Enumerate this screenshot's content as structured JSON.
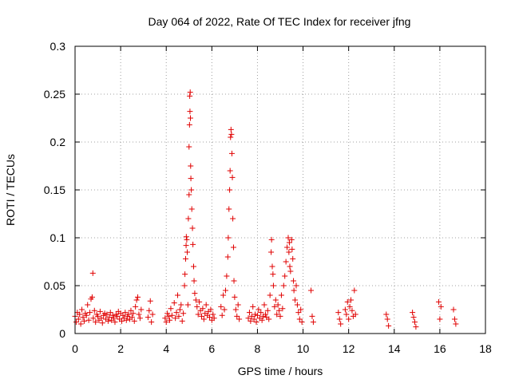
{
  "chart_data": {
    "type": "scatter",
    "title": "Day 064 of 2022, Rate Of TEC Index for receiver jfng",
    "xlabel": "GPS time / hours",
    "ylabel": "ROTI / TECUs",
    "xlim": [
      0,
      18
    ],
    "ylim": [
      0,
      0.3
    ],
    "x_ticks": [
      0,
      2,
      4,
      6,
      8,
      10,
      12,
      14,
      16,
      18
    ],
    "y_ticks": [
      0,
      0.05,
      0.1,
      0.15,
      0.2,
      0.25,
      0.3
    ],
    "x_tick_labels": [
      "0",
      "2",
      "4",
      "6",
      "8",
      "10",
      "12",
      "14",
      "16",
      "18"
    ],
    "y_tick_labels": [
      "0",
      "0.05",
      "0.1",
      "0.15",
      "0.2",
      "0.25",
      "0.3"
    ],
    "grid": true,
    "marker": "+",
    "marker_color": "#e00000",
    "series": [
      {
        "name": "ROTI",
        "points": [
          [
            0.0,
            0.018
          ],
          [
            0.05,
            0.012
          ],
          [
            0.1,
            0.022
          ],
          [
            0.15,
            0.015
          ],
          [
            0.2,
            0.02
          ],
          [
            0.25,
            0.01
          ],
          [
            0.3,
            0.025
          ],
          [
            0.35,
            0.017
          ],
          [
            0.4,
            0.013
          ],
          [
            0.45,
            0.021
          ],
          [
            0.5,
            0.019
          ],
          [
            0.55,
            0.03
          ],
          [
            0.6,
            0.014
          ],
          [
            0.65,
            0.022
          ],
          [
            0.7,
            0.036
          ],
          [
            0.75,
            0.038
          ],
          [
            0.78,
            0.063
          ],
          [
            0.8,
            0.016
          ],
          [
            0.85,
            0.024
          ],
          [
            0.9,
            0.012
          ],
          [
            0.95,
            0.02
          ],
          [
            1.0,
            0.018
          ],
          [
            1.05,
            0.014
          ],
          [
            1.1,
            0.023
          ],
          [
            1.15,
            0.016
          ],
          [
            1.2,
            0.011
          ],
          [
            1.25,
            0.019
          ],
          [
            1.3,
            0.021
          ],
          [
            1.35,
            0.015
          ],
          [
            1.4,
            0.02
          ],
          [
            1.45,
            0.013
          ],
          [
            1.5,
            0.017
          ],
          [
            1.55,
            0.022
          ],
          [
            1.6,
            0.014
          ],
          [
            1.65,
            0.019
          ],
          [
            1.7,
            0.016
          ],
          [
            1.75,
            0.012
          ],
          [
            1.8,
            0.02
          ],
          [
            1.85,
            0.018
          ],
          [
            1.9,
            0.023
          ],
          [
            1.95,
            0.015
          ],
          [
            2.0,
            0.021
          ],
          [
            2.05,
            0.013
          ],
          [
            2.1,
            0.019
          ],
          [
            2.15,
            0.016
          ],
          [
            2.2,
            0.022
          ],
          [
            2.25,
            0.014
          ],
          [
            2.3,
            0.018
          ],
          [
            2.35,
            0.02
          ],
          [
            2.4,
            0.015
          ],
          [
            2.45,
            0.024
          ],
          [
            2.5,
            0.017
          ],
          [
            2.55,
            0.021
          ],
          [
            2.6,
            0.013
          ],
          [
            2.65,
            0.028
          ],
          [
            2.7,
            0.035
          ],
          [
            2.75,
            0.038
          ],
          [
            2.8,
            0.02
          ],
          [
            2.85,
            0.016
          ],
          [
            2.9,
            0.025
          ],
          [
            3.2,
            0.017
          ],
          [
            3.25,
            0.024
          ],
          [
            3.3,
            0.034
          ],
          [
            3.35,
            0.012
          ],
          [
            3.4,
            0.02
          ],
          [
            3.95,
            0.016
          ],
          [
            4.0,
            0.012
          ],
          [
            4.05,
            0.021
          ],
          [
            4.1,
            0.018
          ],
          [
            4.15,
            0.014
          ],
          [
            4.2,
            0.026
          ],
          [
            4.25,
            0.019
          ],
          [
            4.35,
            0.032
          ],
          [
            4.4,
            0.016
          ],
          [
            4.45,
            0.022
          ],
          [
            4.5,
            0.04
          ],
          [
            4.55,
            0.018
          ],
          [
            4.6,
            0.025
          ],
          [
            4.65,
            0.03
          ],
          [
            4.7,
            0.013
          ],
          [
            4.75,
            0.021
          ],
          [
            4.8,
            0.05
          ],
          [
            4.82,
            0.062
          ],
          [
            4.85,
            0.078
          ],
          [
            4.87,
            0.092
          ],
          [
            4.88,
            0.101
          ],
          [
            4.9,
            0.098
          ],
          [
            4.92,
            0.085
          ],
          [
            4.95,
            0.03
          ],
          [
            4.97,
            0.12
          ],
          [
            5.0,
            0.145
          ],
          [
            5.0,
            0.195
          ],
          [
            5.02,
            0.218
          ],
          [
            5.03,
            0.248
          ],
          [
            5.04,
            0.232
          ],
          [
            5.05,
            0.252
          ],
          [
            5.06,
            0.225
          ],
          [
            5.07,
            0.175
          ],
          [
            5.08,
            0.162
          ],
          [
            5.1,
            0.15
          ],
          [
            5.12,
            0.13
          ],
          [
            5.15,
            0.11
          ],
          [
            5.17,
            0.093
          ],
          [
            5.2,
            0.07
          ],
          [
            5.22,
            0.055
          ],
          [
            5.25,
            0.042
          ],
          [
            5.3,
            0.035
          ],
          [
            5.35,
            0.028
          ],
          [
            5.4,
            0.02
          ],
          [
            5.45,
            0.033
          ],
          [
            5.5,
            0.024
          ],
          [
            5.55,
            0.018
          ],
          [
            5.6,
            0.026
          ],
          [
            5.65,
            0.015
          ],
          [
            5.7,
            0.021
          ],
          [
            5.75,
            0.03
          ],
          [
            5.8,
            0.019
          ],
          [
            5.85,
            0.023
          ],
          [
            5.9,
            0.017
          ],
          [
            5.95,
            0.025
          ],
          [
            6.0,
            0.014
          ],
          [
            6.05,
            0.02
          ],
          [
            6.1,
            0.016
          ],
          [
            6.4,
            0.028
          ],
          [
            6.45,
            0.019
          ],
          [
            6.5,
            0.04
          ],
          [
            6.55,
            0.025
          ],
          [
            6.6,
            0.045
          ],
          [
            6.65,
            0.06
          ],
          [
            6.7,
            0.08
          ],
          [
            6.72,
            0.1
          ],
          [
            6.75,
            0.13
          ],
          [
            6.78,
            0.15
          ],
          [
            6.8,
            0.17
          ],
          [
            6.82,
            0.205
          ],
          [
            6.84,
            0.213
          ],
          [
            6.86,
            0.208
          ],
          [
            6.88,
            0.188
          ],
          [
            6.9,
            0.163
          ],
          [
            6.92,
            0.12
          ],
          [
            6.95,
            0.09
          ],
          [
            6.97,
            0.055
          ],
          [
            7.0,
            0.038
          ],
          [
            7.05,
            0.025
          ],
          [
            7.1,
            0.018
          ],
          [
            7.15,
            0.03
          ],
          [
            7.2,
            0.015
          ],
          [
            7.6,
            0.016
          ],
          [
            7.65,
            0.022
          ],
          [
            7.7,
            0.013
          ],
          [
            7.75,
            0.018
          ],
          [
            7.8,
            0.028
          ],
          [
            7.85,
            0.015
          ],
          [
            7.9,
            0.02
          ],
          [
            7.95,
            0.012
          ],
          [
            8.0,
            0.019
          ],
          [
            8.05,
            0.025
          ],
          [
            8.1,
            0.016
          ],
          [
            8.15,
            0.022
          ],
          [
            8.2,
            0.014
          ],
          [
            8.25,
            0.018
          ],
          [
            8.3,
            0.03
          ],
          [
            8.35,
            0.02
          ],
          [
            8.4,
            0.017
          ],
          [
            8.45,
            0.024
          ],
          [
            8.5,
            0.015
          ],
          [
            8.55,
            0.04
          ],
          [
            8.6,
            0.085
          ],
          [
            8.62,
            0.098
          ],
          [
            8.65,
            0.07
          ],
          [
            8.68,
            0.062
          ],
          [
            8.7,
            0.05
          ],
          [
            8.75,
            0.028
          ],
          [
            8.8,
            0.035
          ],
          [
            8.85,
            0.02
          ],
          [
            8.9,
            0.03
          ],
          [
            8.95,
            0.024
          ],
          [
            9.0,
            0.018
          ],
          [
            9.05,
            0.04
          ],
          [
            9.1,
            0.026
          ],
          [
            9.15,
            0.05
          ],
          [
            9.2,
            0.06
          ],
          [
            9.25,
            0.075
          ],
          [
            9.3,
            0.09
          ],
          [
            9.35,
            0.1
          ],
          [
            9.38,
            0.085
          ],
          [
            9.4,
            0.095
          ],
          [
            9.42,
            0.07
          ],
          [
            9.45,
            0.065
          ],
          [
            9.5,
            0.098
          ],
          [
            9.52,
            0.088
          ],
          [
            9.55,
            0.078
          ],
          [
            9.58,
            0.055
          ],
          [
            9.6,
            0.045
          ],
          [
            9.65,
            0.035
          ],
          [
            9.7,
            0.05
          ],
          [
            9.75,
            0.03
          ],
          [
            9.8,
            0.022
          ],
          [
            9.85,
            0.015
          ],
          [
            9.9,
            0.025
          ],
          [
            9.95,
            0.012
          ],
          [
            10.35,
            0.045
          ],
          [
            10.4,
            0.018
          ],
          [
            10.45,
            0.012
          ],
          [
            11.55,
            0.022
          ],
          [
            11.6,
            0.015
          ],
          [
            11.65,
            0.01
          ],
          [
            11.85,
            0.025
          ],
          [
            11.9,
            0.02
          ],
          [
            11.95,
            0.033
          ],
          [
            12.0,
            0.015
          ],
          [
            12.05,
            0.028
          ],
          [
            12.1,
            0.035
          ],
          [
            12.15,
            0.024
          ],
          [
            12.2,
            0.018
          ],
          [
            12.25,
            0.045
          ],
          [
            12.3,
            0.02
          ],
          [
            13.65,
            0.02
          ],
          [
            13.7,
            0.015
          ],
          [
            13.75,
            0.008
          ],
          [
            14.8,
            0.022
          ],
          [
            14.85,
            0.017
          ],
          [
            14.9,
            0.012
          ],
          [
            14.95,
            0.007
          ],
          [
            15.95,
            0.033
          ],
          [
            16.0,
            0.015
          ],
          [
            16.05,
            0.028
          ],
          [
            16.6,
            0.025
          ],
          [
            16.65,
            0.015
          ],
          [
            16.7,
            0.01
          ]
        ]
      }
    ]
  }
}
